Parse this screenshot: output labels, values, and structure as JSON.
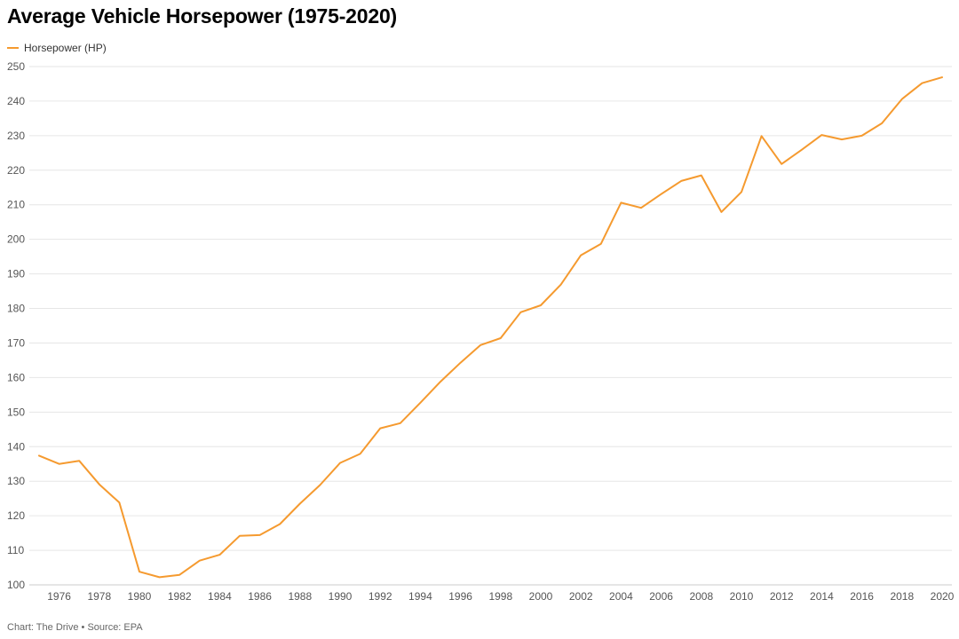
{
  "title": "Average Vehicle Horsepower (1975-2020)",
  "footer": "Chart: The Drive • Source: EPA",
  "colors": {
    "series": "#f59a2f",
    "grid": "#e6e6e6",
    "axis_text": "#555555"
  },
  "chart_data": {
    "type": "line",
    "title": "Average Vehicle Horsepower (1975-2020)",
    "xlabel": "",
    "ylabel": "",
    "xlim": [
      1975,
      2020
    ],
    "ylim": [
      100,
      250
    ],
    "x_ticks": [
      1976,
      1978,
      1980,
      1982,
      1984,
      1986,
      1988,
      1990,
      1992,
      1994,
      1996,
      1998,
      2000,
      2002,
      2004,
      2006,
      2008,
      2010,
      2012,
      2014,
      2016,
      2018,
      2020
    ],
    "y_ticks": [
      100,
      110,
      120,
      130,
      140,
      150,
      160,
      170,
      180,
      190,
      200,
      210,
      220,
      230,
      240,
      250
    ],
    "grid": "horizontal",
    "legend_position": "top-left",
    "x": [
      1975,
      1976,
      1977,
      1978,
      1979,
      1980,
      1981,
      1982,
      1983,
      1984,
      1985,
      1986,
      1987,
      1988,
      1989,
      1990,
      1991,
      1992,
      1993,
      1994,
      1995,
      1996,
      1997,
      1998,
      1999,
      2000,
      2001,
      2002,
      2003,
      2004,
      2005,
      2006,
      2007,
      2008,
      2009,
      2010,
      2011,
      2012,
      2013,
      2014,
      2015,
      2016,
      2017,
      2018,
      2019,
      2020
    ],
    "series": [
      {
        "name": "Horsepower (HP)",
        "values": [
          137.4,
          135.0,
          135.9,
          129.1,
          123.8,
          103.8,
          102.2,
          102.9,
          107.0,
          108.7,
          114.2,
          114.4,
          117.6,
          123.5,
          128.9,
          135.3,
          137.9,
          145.3,
          146.8,
          152.7,
          158.8,
          164.3,
          169.4,
          171.4,
          178.9,
          180.9,
          186.9,
          195.4,
          198.7,
          210.6,
          209.1,
          213.1,
          216.9,
          218.5,
          207.9,
          213.7,
          229.9,
          221.8,
          225.9,
          230.2,
          228.9,
          230.0,
          233.6,
          240.6,
          245.2,
          246.9
        ]
      }
    ]
  }
}
